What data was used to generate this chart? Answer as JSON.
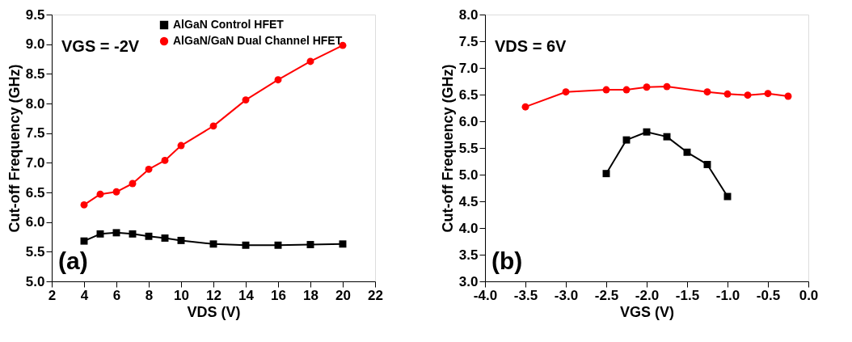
{
  "chart_data": [
    {
      "type": "line",
      "xlabel": "VDS (V)",
      "ylabel": "Cut-off Frequency (GHz)",
      "annotations": [
        "VGS = -2V",
        "(a)"
      ],
      "x": [
        4,
        5,
        6,
        7,
        8,
        9,
        10,
        12,
        14,
        16,
        18,
        20
      ],
      "series": [
        {
          "name": "AlGaN Control HFET",
          "color": "#000000",
          "marker": "square",
          "values": [
            5.68,
            5.8,
            5.82,
            5.8,
            5.76,
            5.73,
            5.69,
            5.63,
            5.61,
            5.61,
            5.62,
            5.63
          ]
        },
        {
          "name": "AlGaN/GaN Dual Channel HFET",
          "color": "#ff0000",
          "marker": "circle",
          "values": [
            6.29,
            6.47,
            6.51,
            6.65,
            6.89,
            7.04,
            7.29,
            7.62,
            8.06,
            8.4,
            8.71,
            8.98
          ]
        }
      ],
      "xlim": [
        2,
        22
      ],
      "xticks": [
        2,
        4,
        6,
        8,
        10,
        12,
        14,
        16,
        18,
        20,
        22
      ],
      "ylim": [
        5.0,
        9.5
      ],
      "yticks": [
        {
          "value": 5,
          "label": "5.0"
        },
        5.5,
        {
          "value": 6,
          "label": "6.0"
        },
        6.5,
        {
          "value": 7,
          "label": "7.0"
        },
        7.5,
        {
          "value": 8,
          "label": "8.0"
        },
        8.5,
        {
          "value": 9,
          "label": "9.0"
        },
        9.5
      ],
      "legend": "top",
      "grid": false,
      "line_style": "solid"
    },
    {
      "type": "line",
      "xlabel": "VGS (V)",
      "ylabel": "Cut-off Frequency (GHz)",
      "annotations": [
        "VDS = 6V",
        "(b)"
      ],
      "series": [
        {
          "name": "AlGaN Control HFET",
          "color": "#000000",
          "marker": "square",
          "x": [
            -2.5,
            -2.25,
            -2.0,
            -1.75,
            -1.5,
            -1.25,
            -1.0
          ],
          "values": [
            5.02,
            5.65,
            5.8,
            5.71,
            5.42,
            5.19,
            4.59
          ]
        },
        {
          "name": "AlGaN/GaN Dual Channel HFET",
          "color": "#ff0000",
          "marker": "circle",
          "x": [
            -3.5,
            -3.0,
            -2.5,
            -2.25,
            -2.0,
            -1.75,
            -1.25,
            -1.0,
            -0.75,
            -0.5,
            -0.25
          ],
          "values": [
            6.27,
            6.55,
            6.59,
            6.59,
            6.64,
            6.65,
            6.55,
            6.51,
            6.49,
            6.52,
            6.47
          ]
        }
      ],
      "xlim": [
        -4.0,
        0.0
      ],
      "xticks": [
        {
          "value": -4,
          "label": "-4.0"
        },
        -3.5,
        {
          "value": -3,
          "label": "-3.0"
        },
        -2.5,
        {
          "value": -2,
          "label": "-2.0"
        },
        -1.5,
        {
          "value": -1,
          "label": "-1.0"
        },
        -0.5,
        {
          "value": 0,
          "label": "0.0"
        }
      ],
      "ylim": [
        3.0,
        8.0
      ],
      "yticks": [
        {
          "value": 3,
          "label": "3.0"
        },
        3.5,
        {
          "value": 4,
          "label": "4.0"
        },
        4.5,
        {
          "value": 5,
          "label": "5.0"
        },
        5.5,
        {
          "value": 6,
          "label": "6.0"
        },
        6.5,
        {
          "value": 7,
          "label": "7.0"
        },
        7.5,
        {
          "value": 8,
          "label": "8.0"
        }
      ],
      "legend": "top",
      "grid": false,
      "line_style": "solid"
    }
  ]
}
